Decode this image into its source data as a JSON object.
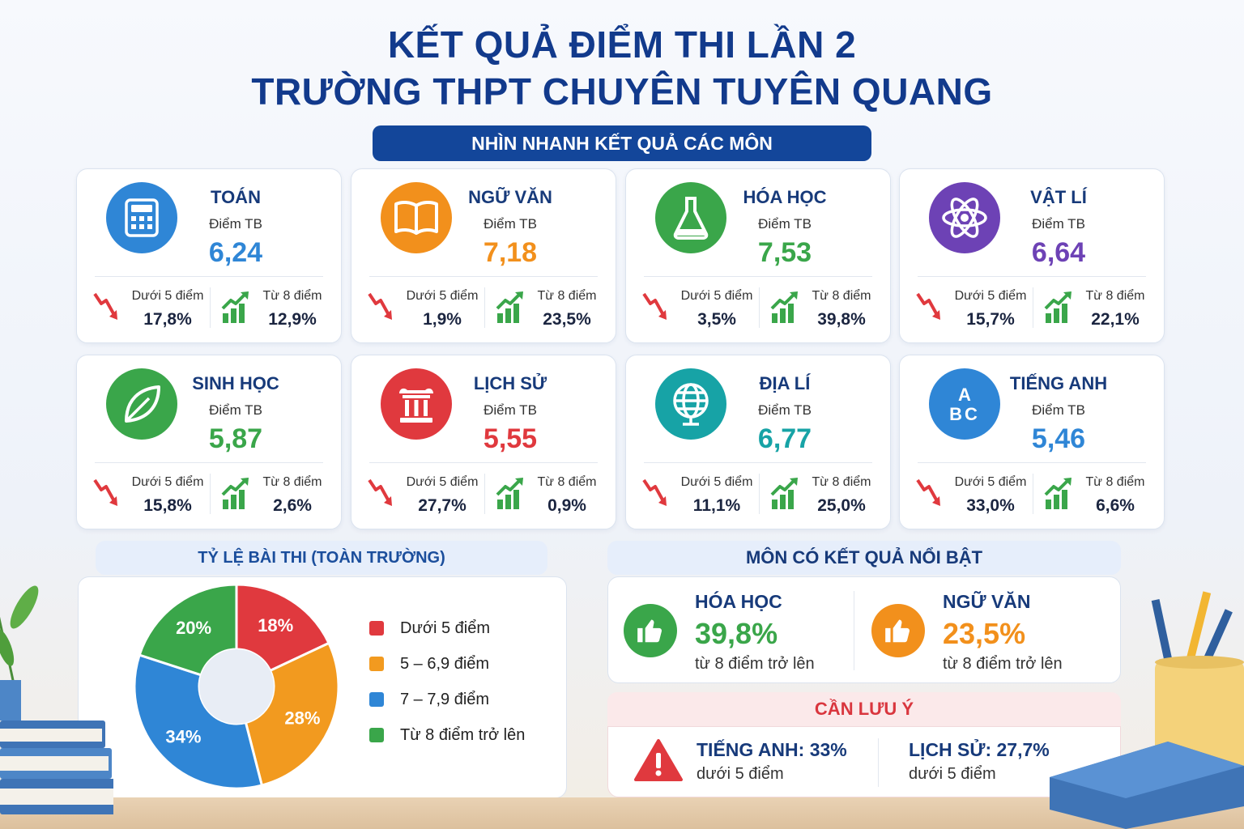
{
  "title_line1": "KẾT QUẢ ĐIỂM THI LẦN 2",
  "title_line2": "TRƯỜNG THPT CHUYÊN TUYÊN QUANG",
  "section_label": "NHÌN NHANH KẾT QUẢ CÁC MÔN",
  "common": {
    "avg_label": "Điểm TB",
    "below_label": "Dưới 5 điểm",
    "above_label": "Từ 8 điểm"
  },
  "subjects": [
    {
      "name": "TOÁN",
      "avg": "6,24",
      "below": "17,8%",
      "above": "12,9%",
      "color": "#2f86d6",
      "icon": "calculator-icon"
    },
    {
      "name": "NGỮ VĂN",
      "avg": "7,18",
      "below": "1,9%",
      "above": "23,5%",
      "color": "#f2901c",
      "icon": "book-icon"
    },
    {
      "name": "HÓA HỌC",
      "avg": "7,53",
      "below": "3,5%",
      "above": "39,8%",
      "color": "#3aa64a",
      "icon": "flask-icon"
    },
    {
      "name": "VẬT LÍ",
      "avg": "6,64",
      "below": "15,7%",
      "above": "22,1%",
      "color": "#6d42b5",
      "icon": "atom-icon"
    },
    {
      "name": "SINH HỌC",
      "avg": "5,87",
      "below": "15,8%",
      "above": "2,6%",
      "color": "#3aa64a",
      "icon": "leaf-icon"
    },
    {
      "name": "LỊCH SỬ",
      "avg": "5,55",
      "below": "27,7%",
      "above": "0,9%",
      "color": "#e0393e",
      "icon": "column-icon"
    },
    {
      "name": "ĐỊA LÍ",
      "avg": "6,77",
      "below": "11,1%",
      "above": "25,0%",
      "color": "#17a3a6",
      "icon": "globe-icon"
    },
    {
      "name": "TIẾNG ANH",
      "avg": "5,46",
      "below": "33,0%",
      "above": "6,6%",
      "color": "#2f86d6",
      "icon": "abc-icon"
    }
  ],
  "pie_title": "TỶ LỆ BÀI THI (TOÀN TRƯỜNG)",
  "chart_data": {
    "type": "pie",
    "title": "TỶ LỆ BÀI THI (TOÀN TRƯỜNG)",
    "categories": [
      "Dưới 5 điểm",
      "5 – 6,9 điểm",
      "7 – 7,9 điểm",
      "Từ 8 điểm trở lên"
    ],
    "values": [
      18,
      28,
      34,
      20
    ],
    "labels": [
      "18%",
      "28%",
      "34%",
      "20%"
    ],
    "colors": [
      "#e0393e",
      "#f29a1f",
      "#2f86d6",
      "#3aa64a"
    ],
    "legend_position": "right"
  },
  "highlight_title": "MÔN CÓ KẾT QUẢ NỔI BẬT",
  "highlights": [
    {
      "name": "HÓA HỌC",
      "value": "39,8%",
      "note": "từ 8 điểm trở lên",
      "color": "#3aa64a"
    },
    {
      "name": "NGỮ VĂN",
      "value": "23,5%",
      "note": "từ 8 điểm trở lên",
      "color": "#f2901c"
    }
  ],
  "warning_title": "CẦN LƯU Ý",
  "warnings": [
    {
      "name": "TIẾNG ANH: 33%",
      "note": "dưới 5 điểm"
    },
    {
      "name": "LỊCH SỬ: 27,7%",
      "note": "dưới 5 điểm"
    }
  ]
}
